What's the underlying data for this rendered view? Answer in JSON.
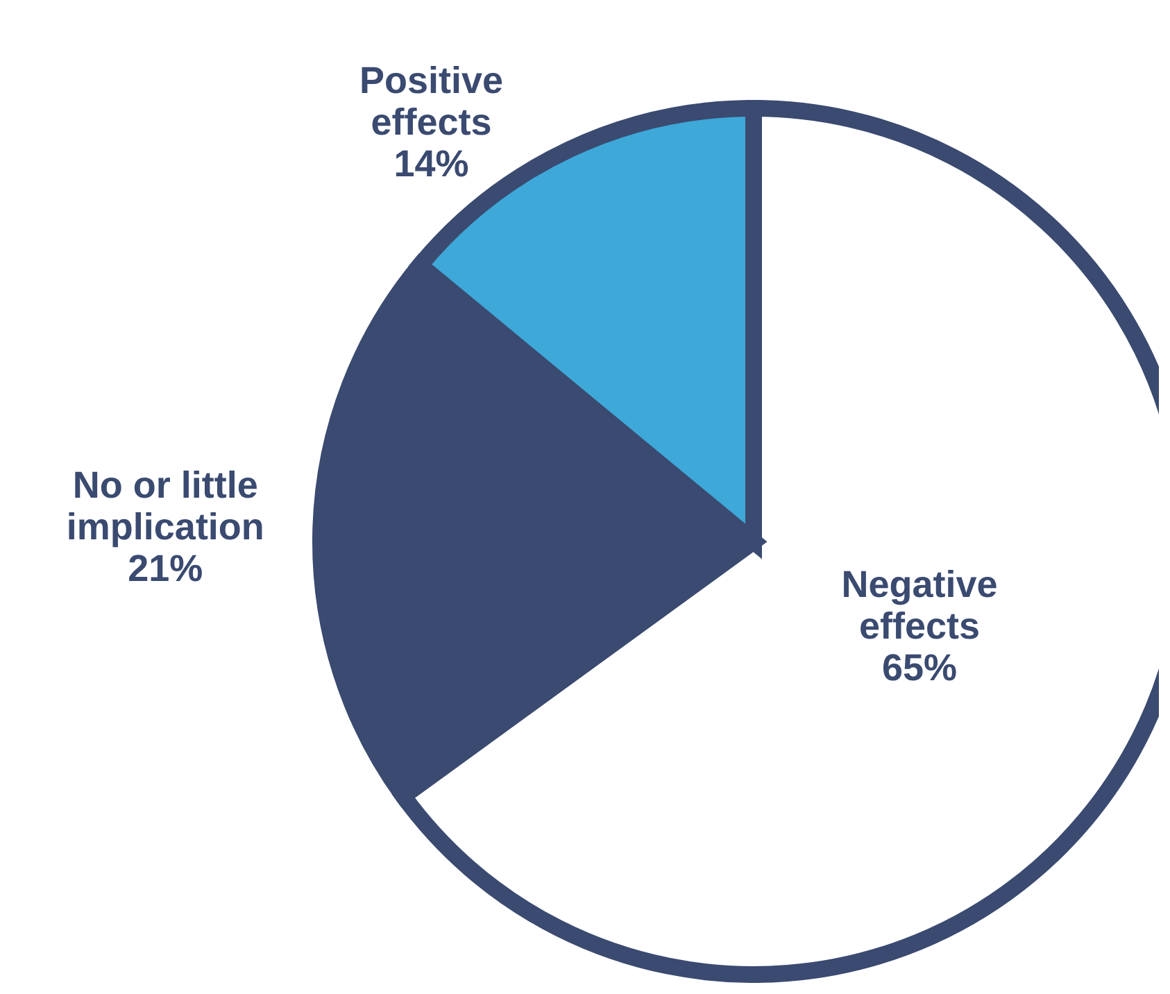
{
  "chart_data": {
    "type": "pie",
    "categories": [
      "Negative effects",
      "No or little implication",
      "Positive effects"
    ],
    "values": [
      65,
      21,
      14
    ],
    "colors": [
      "#ffffff",
      "#3a4a70",
      "#3ea8d8"
    ],
    "value_labels": [
      "65%",
      "21%",
      "14%"
    ]
  }
}
